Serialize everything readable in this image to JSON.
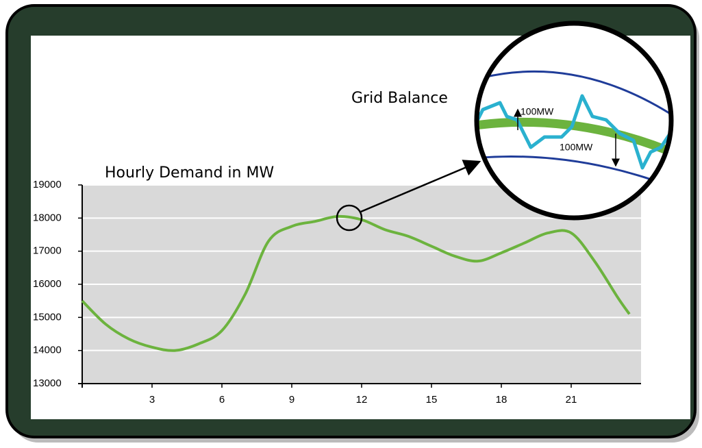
{
  "chart_data": {
    "type": "line",
    "title": "Hourly Demand in MW",
    "annotations": [
      "Grid Balance",
      "100MW",
      "100MW"
    ],
    "x": [
      0,
      1,
      2,
      3,
      4,
      5,
      6,
      7,
      8,
      9,
      10,
      11,
      12,
      13,
      14,
      15,
      16,
      17,
      18,
      19,
      20,
      21,
      22,
      23,
      23.5
    ],
    "series": [
      {
        "name": "Hourly Demand",
        "color": "#6cb33e",
        "values": [
          15500,
          14800,
          14350,
          14100,
          14000,
          14200,
          14600,
          15700,
          17300,
          17750,
          17900,
          18050,
          17950,
          17650,
          17450,
          17150,
          16850,
          16700,
          16950,
          17250,
          17550,
          17550,
          16700,
          15600,
          15100
        ]
      }
    ],
    "xlim": [
      0,
      24
    ],
    "xticks": [
      3,
      6,
      9,
      12,
      15,
      18,
      21
    ],
    "ylim": [
      13000,
      19000
    ],
    "yticks": [
      13000,
      14000,
      15000,
      16000,
      17000,
      18000,
      19000
    ],
    "grid": true
  }
}
